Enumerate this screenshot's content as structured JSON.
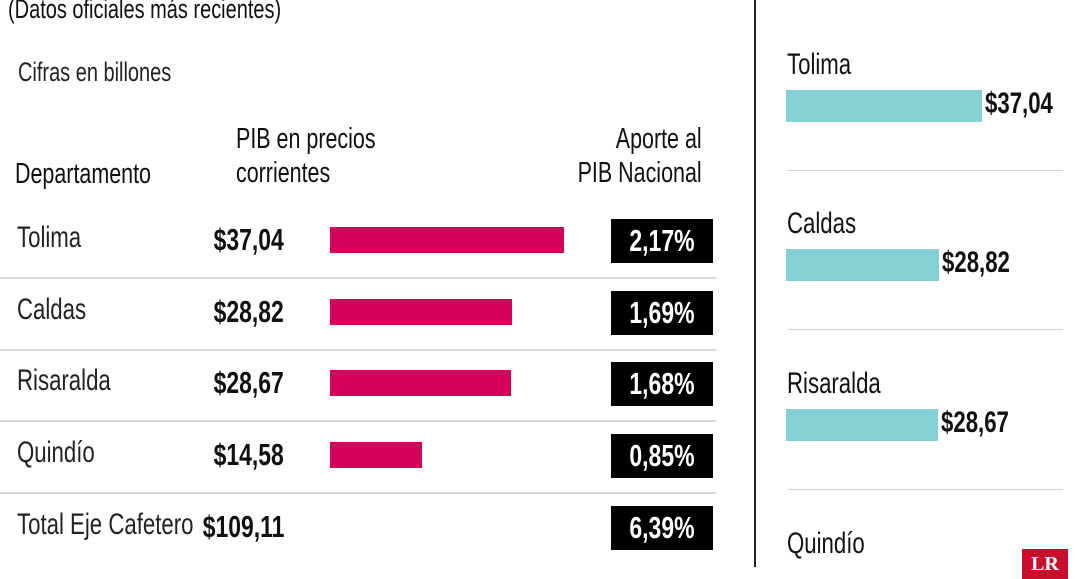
{
  "subtitle": "(Datos oficiales más recientes)",
  "units_note": "Cifras en billones",
  "headers": {
    "departamento": "Departamento",
    "pib_line1": "PIB en precios",
    "pib_line2": "corrientes",
    "aporte_line1": "Aporte al",
    "aporte_line2": "PIB Nacional"
  },
  "colors": {
    "bar": "#d4005a",
    "badge": "#000000",
    "right_bar": "#86cfd4",
    "logo": "#c8102e"
  },
  "table": {
    "rows": [
      {
        "departamento": "Tolima",
        "pib": "$37,04",
        "aporte": "2,17%"
      },
      {
        "departamento": "Caldas",
        "pib": "$28,82",
        "aporte": "1,69%"
      },
      {
        "departamento": "Risaralda",
        "pib": "$28,67",
        "aporte": "1,68%"
      },
      {
        "departamento": "Quindío",
        "pib": "$14,58",
        "aporte": "0,85%"
      }
    ],
    "total": {
      "departamento": "Total Eje Cafetero",
      "pib": "$109,11",
      "aporte": "6,39%"
    }
  },
  "right_panel": {
    "items": [
      {
        "name": "Tolima",
        "value": "$37,04"
      },
      {
        "name": "Caldas",
        "value": "$28,82"
      },
      {
        "name": "Risaralda",
        "value": "$28,67"
      },
      {
        "name": "Quindío",
        "value": ""
      }
    ]
  },
  "logo_text": "LR",
  "chart_data": {
    "type": "bar",
    "orientation": "horizontal",
    "categories": [
      "Tolima",
      "Caldas",
      "Risaralda",
      "Quindío"
    ],
    "values": [
      37.04,
      28.82,
      28.67,
      14.58
    ],
    "aporte_pct": [
      2.17,
      1.69,
      1.68,
      0.85
    ],
    "total": 109.11,
    "total_aporte_pct": 6.39,
    "units": "billones",
    "grid": false
  }
}
